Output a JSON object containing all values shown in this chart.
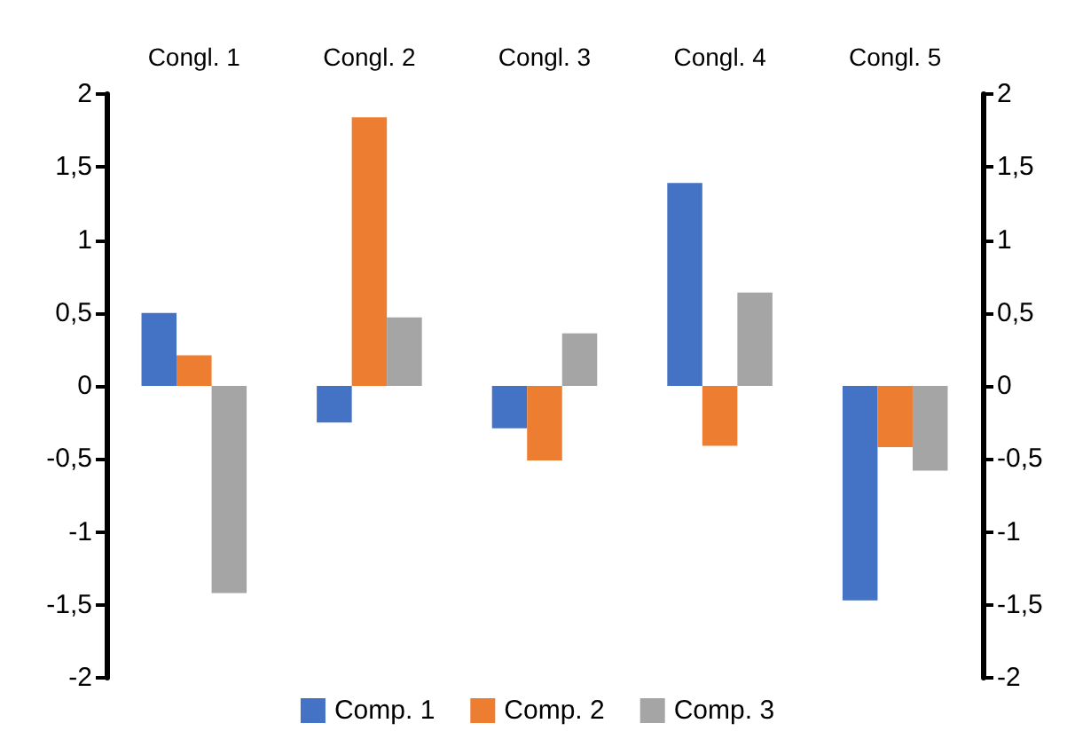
{
  "chart_data": {
    "type": "bar",
    "categories": [
      "Congl. 1",
      "Congl. 2",
      "Congl. 3",
      "Congl. 4",
      "Congl. 5"
    ],
    "series": [
      {
        "name": "Comp. 1",
        "color": "#4472c4",
        "values": [
          0.5,
          -0.25,
          -0.29,
          1.39,
          -1.47
        ]
      },
      {
        "name": "Comp. 2",
        "color": "#ed7d31",
        "values": [
          0.21,
          1.84,
          -0.51,
          -0.41,
          -0.42
        ]
      },
      {
        "name": "Comp. 3",
        "color": "#a5a5a5",
        "values": [
          -1.42,
          0.47,
          0.36,
          0.64,
          -0.58
        ]
      }
    ],
    "ylim": [
      -2,
      2
    ],
    "yticks": [
      {
        "value": -2,
        "label": "-2"
      },
      {
        "value": -1.5,
        "label": "-1,5"
      },
      {
        "value": -1,
        "label": "-1"
      },
      {
        "value": -0.5,
        "label": "-0,5"
      },
      {
        "value": 0,
        "label": "0"
      },
      {
        "value": 0.5,
        "label": "0,5"
      },
      {
        "value": 1,
        "label": "1"
      },
      {
        "value": 1.5,
        "label": "1,5"
      },
      {
        "value": 2,
        "label": "2"
      }
    ],
    "y2lim": [
      -2,
      2
    ],
    "y2ticks": [
      {
        "value": -2,
        "label": "-2"
      },
      {
        "value": -1.5,
        "label": "-1,5"
      },
      {
        "value": -1,
        "label": "-1"
      },
      {
        "value": -0.5,
        "label": "-0,5"
      },
      {
        "value": 0,
        "label": "0"
      },
      {
        "value": 0.5,
        "label": "0,5"
      },
      {
        "value": 1,
        "label": "1"
      },
      {
        "value": 1.5,
        "label": "1,5"
      },
      {
        "value": 2,
        "label": "2"
      }
    ],
    "grid": false,
    "legend": "bottom"
  }
}
